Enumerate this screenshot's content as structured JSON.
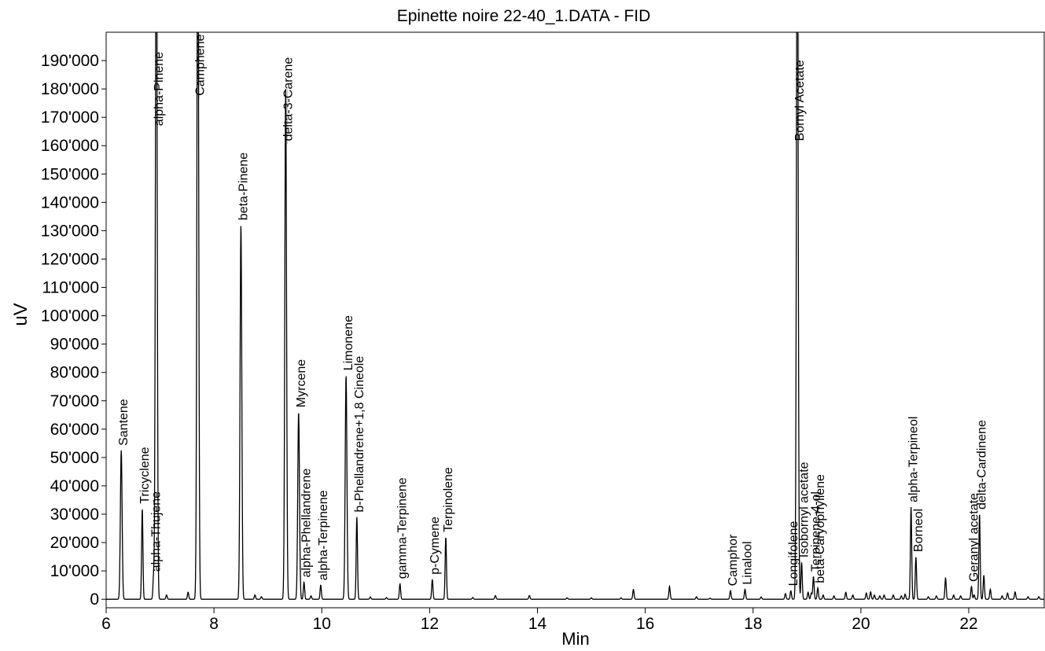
{
  "chart_data": {
    "type": "line",
    "title": "Epinette noire 22-40_1.DATA - FID",
    "xlabel": "Min",
    "ylabel": "uV",
    "xlim": [
      6,
      23.4
    ],
    "ylim": [
      -3000,
      200000
    ],
    "xticks": [
      6,
      8,
      10,
      12,
      14,
      16,
      18,
      20,
      22
    ],
    "xtick_labels": [
      "6",
      "8",
      "10",
      "12",
      "14",
      "16",
      "18",
      "20",
      "22"
    ],
    "yticks": [
      0,
      10000,
      20000,
      30000,
      40000,
      50000,
      60000,
      70000,
      80000,
      90000,
      100000,
      110000,
      120000,
      130000,
      140000,
      150000,
      160000,
      170000,
      180000,
      190000
    ],
    "ytick_labels": [
      "0",
      "10'000",
      "20'000",
      "30'000",
      "40'000",
      "50'000",
      "60'000",
      "70'000",
      "80'000",
      "90'000",
      "100'000",
      "110'000",
      "120'000",
      "130'000",
      "140'000",
      "150'000",
      "160'000",
      "170'000",
      "180'000",
      "190'000"
    ],
    "grid": false,
    "legend": "none",
    "peaks": [
      {
        "x": 6.28,
        "y": 52500,
        "label": "Santene"
      },
      {
        "x": 6.67,
        "y": 32000,
        "label": "Tricyclene"
      },
      {
        "x": 6.88,
        "y": 8000,
        "label": "alpha-Thujene"
      },
      {
        "x": 6.93,
        "y": 260000,
        "label": "alpha-Pinene"
      },
      {
        "x": 7.7,
        "y": 260000,
        "label": "Camphene"
      },
      {
        "x": 8.5,
        "y": 132000,
        "label": "beta-Pinene"
      },
      {
        "x": 9.33,
        "y": 180000,
        "label": "delta-3-Carene"
      },
      {
        "x": 9.57,
        "y": 66000,
        "label": "Myrcene"
      },
      {
        "x": 9.67,
        "y": 6000,
        "label": "alpha-Phellandrene"
      },
      {
        "x": 9.98,
        "y": 5000,
        "label": "alpha-Terpinene"
      },
      {
        "x": 10.45,
        "y": 79000,
        "label": "Limonene"
      },
      {
        "x": 10.65,
        "y": 29000,
        "label": "b-Phellandrene+1,8 Cineole"
      },
      {
        "x": 11.45,
        "y": 5500,
        "label": "gamma-Terpinene"
      },
      {
        "x": 12.05,
        "y": 7000,
        "label": "p-Cymene"
      },
      {
        "x": 12.3,
        "y": 22000,
        "label": "Terpinolene"
      },
      {
        "x": 17.58,
        "y": 3000,
        "label": "Camphor"
      },
      {
        "x": 17.85,
        "y": 3500,
        "label": "Linalool"
      },
      {
        "x": 18.7,
        "y": 3000,
        "label": "Longifolene"
      },
      {
        "x": 18.82,
        "y": 260000,
        "label": "Bornyl Acetate"
      },
      {
        "x": 18.9,
        "y": 13000,
        "label": "Isobornyl acetate"
      },
      {
        "x": 19.12,
        "y": 8000,
        "label": "Terpinene-4-ol"
      },
      {
        "x": 19.2,
        "y": 4000,
        "label": "beta-Caryophyllene"
      },
      {
        "x": 20.93,
        "y": 32500,
        "label": "alpha-Terpineol"
      },
      {
        "x": 21.02,
        "y": 15000,
        "label": "Borneol"
      },
      {
        "x": 22.05,
        "y": 4500,
        "label": "Geranyl acetate"
      },
      {
        "x": 22.2,
        "y": 30000,
        "label": "delta-Cardinene"
      }
    ]
  }
}
